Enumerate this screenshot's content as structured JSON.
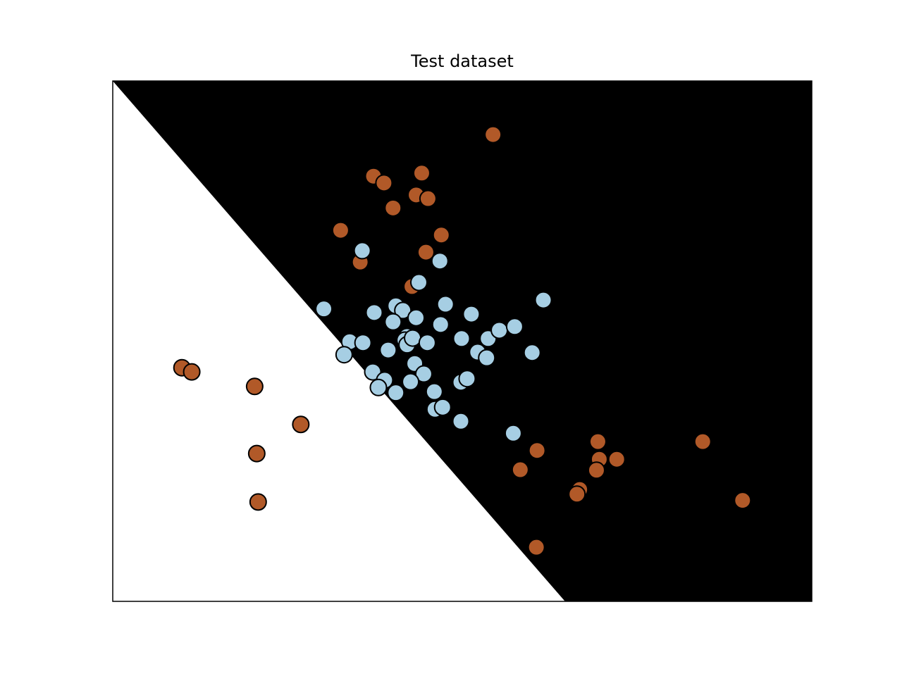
{
  "chart_data": {
    "type": "scatter",
    "title": "Test dataset",
    "xlim": [
      0,
      100
    ],
    "ylim": [
      0,
      100
    ],
    "regions": {
      "left_color": "#ffffff",
      "right_color": "#000000",
      "boundary_x": [
        0,
        64.7
      ],
      "boundary_y": [
        100,
        0
      ]
    },
    "marker_edge_color": "#000000",
    "series": [
      {
        "color": "#b15928",
        "x": [
          54.4,
          37.3,
          38.8,
          44.2,
          43.4,
          45.1,
          40.1,
          32.6,
          47.0,
          44.8,
          35.4,
          42.8,
          9.9,
          11.3,
          20.3,
          26.9,
          20.6,
          20.8,
          60.7,
          58.3,
          69.4,
          69.6,
          69.2,
          72.1,
          66.8,
          66.4,
          84.4,
          90.1,
          60.6
        ],
        "values": [
          89.7,
          81.7,
          80.4,
          82.3,
          78.1,
          77.4,
          75.6,
          71.3,
          70.4,
          67.1,
          65.2,
          60.5,
          44.9,
          44.1,
          41.3,
          34.0,
          28.4,
          19.1,
          29.0,
          25.3,
          30.7,
          27.3,
          25.2,
          27.3,
          21.5,
          20.6,
          30.7,
          19.4,
          10.4
        ]
      },
      {
        "color": "#a6cee3",
        "x": [
          35.7,
          46.8,
          43.8,
          30.2,
          37.4,
          40.5,
          41.5,
          43.4,
          47.6,
          51.3,
          40.1,
          46.9,
          33.9,
          35.8,
          39.4,
          42.1,
          41.8,
          42.1,
          42.9,
          45.0,
          49.9,
          53.7,
          55.3,
          57.5,
          52.2,
          53.5,
          60.0,
          61.6,
          33.1,
          37.2,
          38.9,
          38.0,
          40.5,
          43.2,
          44.5,
          42.6,
          46.0,
          46.1,
          47.2,
          49.8,
          50.7,
          49.8,
          57.3
        ],
        "values": [
          67.4,
          65.4,
          61.3,
          56.2,
          55.5,
          56.8,
          55.9,
          54.5,
          57.1,
          55.2,
          53.7,
          53.2,
          49.9,
          49.7,
          48.3,
          50.9,
          50.2,
          49.3,
          50.6,
          49.7,
          50.5,
          50.5,
          52.1,
          52.8,
          47.9,
          46.8,
          47.8,
          57.9,
          47.4,
          44.1,
          42.5,
          41.1,
          40.1,
          45.7,
          43.7,
          42.2,
          40.3,
          36.9,
          37.3,
          42.1,
          42.8,
          34.6,
          32.3
        ]
      }
    ]
  }
}
